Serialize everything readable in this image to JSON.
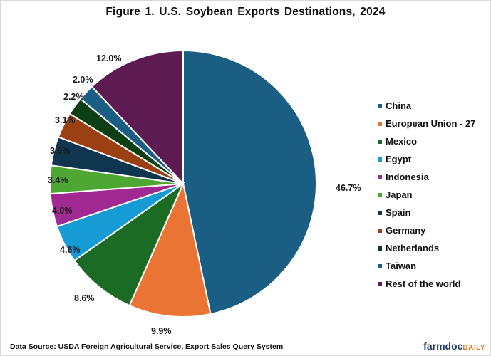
{
  "chart_data": {
    "type": "pie",
    "title": "Figure 1. U.S. Soybean Exports Destinations, 2024",
    "categories": [
      "China",
      "European Union - 27",
      "Mexico",
      "Egypt",
      "Indonesia",
      "Japan",
      "Spain",
      "Germany",
      "Netherlands",
      "Taiwan",
      "Rest of the world"
    ],
    "values": [
      46.7,
      9.9,
      8.6,
      4.6,
      4.0,
      3.4,
      3.5,
      3.1,
      2.2,
      2.0,
      12.0
    ],
    "labels": [
      "46.7%",
      "9.9%",
      "8.6%",
      "4.6%",
      "4.0%",
      "3.4%",
      "3.5%",
      "3.1%",
      "2.2%",
      "2.0%",
      "12.0%"
    ],
    "colors": [
      "#1a5f83",
      "#ea7433",
      "#1b6b24",
      "#169bd5",
      "#a02a92",
      "#4ea732",
      "#0f354f",
      "#9b4013",
      "#0d3f14",
      "#1a5f83",
      "#5e1b52"
    ],
    "start_angle": "12 o'clock, clockwise",
    "legend_position": "right"
  },
  "title": "Figure 1. U.S. Soybean Exports Destinations, 2024",
  "footer": {
    "source": "Data Source: USDA Foreign Agricultural  Service, Export Sales Query System",
    "brand_main": "farmdoc",
    "brand_sub": "DAILY"
  }
}
